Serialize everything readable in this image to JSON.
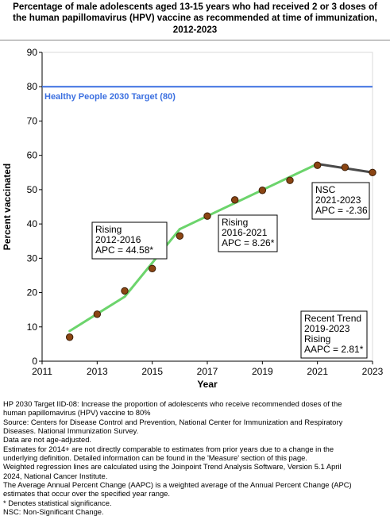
{
  "chart_data": {
    "type": "line",
    "title": "Percentage of male adolescents aged 13-15 years who had received 2 or 3 doses of the human papillomavirus (HPV) vaccine as recommended at time of immunization, 2012-2023",
    "xlabel": "Year",
    "ylabel": "Percent vaccinated",
    "xlim": [
      2011,
      2023
    ],
    "ylim": [
      0,
      90
    ],
    "xticks": [
      2011,
      2013,
      2015,
      2017,
      2019,
      2021,
      2023
    ],
    "yticks": [
      0,
      10,
      20,
      30,
      40,
      50,
      60,
      70,
      80,
      90
    ],
    "grid": false,
    "series": [
      {
        "name": "",
        "type": "scatter",
        "x": [
          2012,
          2013,
          2014,
          2015,
          2016,
          2017,
          2018,
          2019,
          2020,
          2021,
          2022,
          2023
        ],
        "y": [
          7.0,
          13.7,
          20.5,
          27.0,
          36.5,
          42.3,
          47.0,
          49.8,
          52.7,
          57.1,
          56.5,
          55.0
        ],
        "color": "#8b4513"
      },
      {
        "name": "",
        "type": "line",
        "x": [
          2012,
          2014,
          2016
        ],
        "y": [
          8.8,
          18.8,
          38.5
        ],
        "color": "#6cd46c"
      },
      {
        "name": "",
        "type": "line",
        "x": [
          2016,
          2021
        ],
        "y": [
          38.5,
          57.5
        ],
        "color": "#6cd46c"
      },
      {
        "name": "",
        "type": "line",
        "x": [
          2021,
          2023
        ],
        "y": [
          57.5,
          55.0
        ],
        "color": "#4a4a4a"
      }
    ],
    "target": {
      "label": "Healthy People 2030 Target (80)",
      "value": 80,
      "color": "#3b6fe0"
    },
    "annotations": [
      {
        "lines": [
          "Rising",
          "2012-2016",
          "APC = 44.58*"
        ],
        "boxed": true
      },
      {
        "lines": [
          "Rising",
          "2016-2021",
          "APC =  8.26*"
        ],
        "boxed": true
      },
      {
        "lines": [
          "NSC",
          "2021-2023",
          "APC = -2.36"
        ],
        "boxed": true
      },
      {
        "lines": [
          "Recent Trend",
          "2019-2023",
          "Rising",
          "AAPC =  2.81*"
        ],
        "boxed": true
      }
    ]
  },
  "footnotes": [
    "HP 2030 Target IID-08:  Increase the proportion of adolescents who receive recommended doses of the",
    "human papillomavirus (HPV) vaccine to 80%",
    "Source: Centers for Disease Control and Prevention, National Center for Immunization and Respiratory",
    "Diseases. National Immunization Survey.",
    "Data are not age-adjusted.",
    "Estimates for 2014+ are not directly comparable to estimates from prior years due to a change in the",
    "underlying definition. Detailed information can be found in the 'Measure' section of this page.",
    "Weighted regression lines are calculated using the Joinpoint Trend Analysis Software, Version 5.1 April",
    "2024, National Cancer Institute.",
    "The Average Annual Percent Change (AAPC) is a weighted average of the Annual Percent Change (APC)",
    "estimates that occur over the specified year range.",
    "* Denotes statistical significance.",
    "NSC: Non-Significant Change."
  ]
}
